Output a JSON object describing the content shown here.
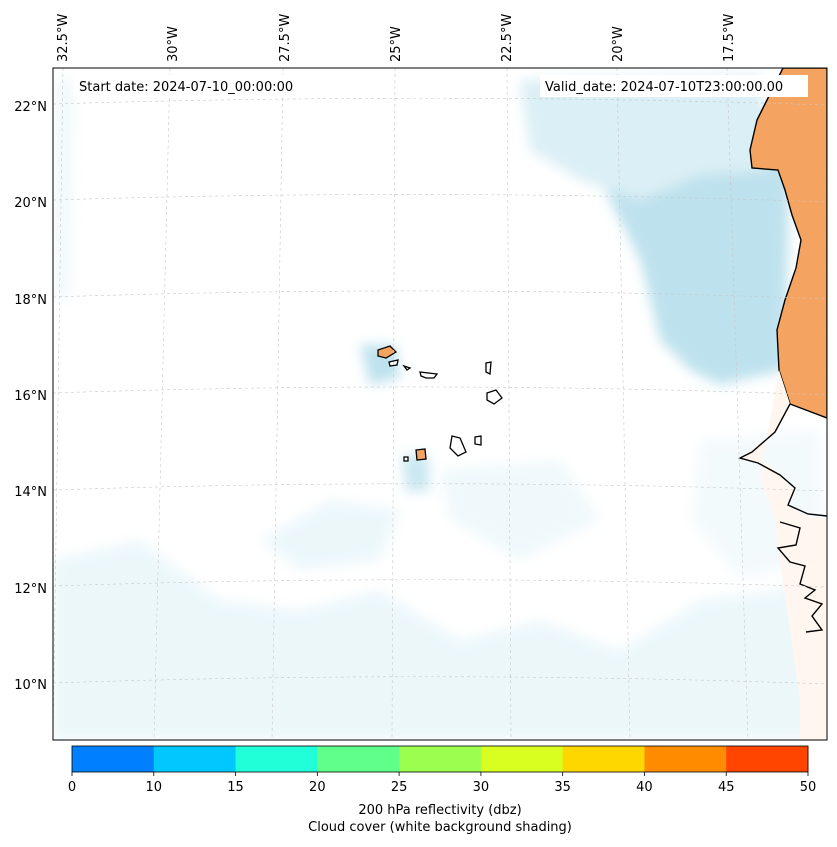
{
  "map": {
    "start_date_label": "Start date: 2024-07-10_00:00:00",
    "valid_date_label": "Valid_date: 2024-07-10T23:00:00.00",
    "lon_labels": [
      "32.5°W",
      "30°W",
      "27.5°W",
      "25°W",
      "22.5°W",
      "20°W",
      "17.5°W"
    ],
    "lat_labels": [
      "22°N",
      "20°N",
      "18°N",
      "16°N",
      "14°N",
      "12°N",
      "10°N"
    ],
    "land_color": "#f4a460",
    "cloud_color": "#add8e6"
  },
  "colorbar": {
    "ticks": [
      "0",
      "10",
      "15",
      "20",
      "25",
      "30",
      "35",
      "40",
      "45",
      "50"
    ],
    "colors": [
      "#0080ff",
      "#00c8ff",
      "#20ffd8",
      "#60ff8a",
      "#9cff50",
      "#d8ff20",
      "#ffd700",
      "#ff8c00",
      "#ff4500"
    ],
    "label_line1": "200 hPa reflectivity (dbz)",
    "label_line2": "Cloud cover (white background shading)"
  }
}
